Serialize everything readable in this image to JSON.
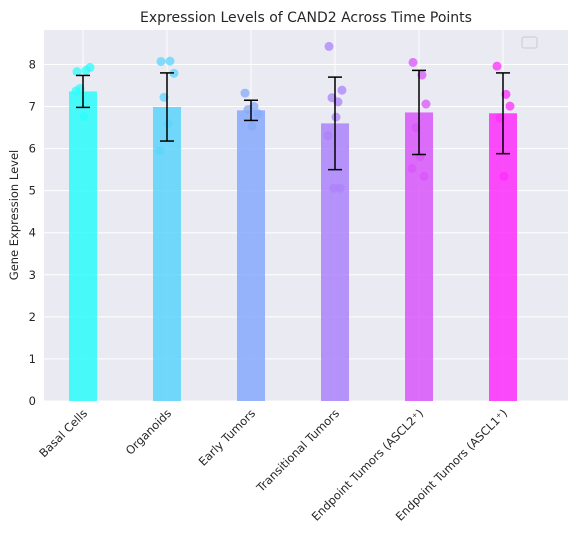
{
  "chart_data": {
    "type": "bar",
    "title": "Expression Levels of CAND2 Across Time Points",
    "xlabel": "",
    "ylabel": "Gene Expression Level",
    "ylim": [
      0,
      8.82
    ],
    "yticks": [
      0,
      1,
      2,
      3,
      4,
      5,
      6,
      7,
      8
    ],
    "grid": true,
    "legend": "top-right (empty)",
    "categories": [
      "Basal Cells",
      "Organoids",
      "Early Tumors",
      "Transitional Tumors",
      "Endpoint Tumors (ASCL2⁺)",
      "Endpoint Tumors (ASCL1⁺)"
    ],
    "colors": [
      "#2cfcfc",
      "#5cd4fb",
      "#86a9fb",
      "#ac81fb",
      "#d856fa",
      "#fd2dfb"
    ],
    "means": [
      7.36,
      6.99,
      6.91,
      6.6,
      6.86,
      6.84
    ],
    "errors": [
      0.38,
      0.81,
      0.24,
      1.1,
      1.0,
      0.96
    ],
    "points": [
      [
        7.83,
        7.86,
        7.93,
        7.43,
        6.76,
        7.37
      ],
      [
        8.07,
        8.08,
        7.79,
        7.22,
        6.6,
        5.95
      ],
      [
        7.32,
        7.0,
        6.83,
        6.93,
        6.53
      ],
      [
        8.43,
        7.11,
        7.39,
        7.21,
        6.75,
        6.31,
        5.06,
        5.06
      ],
      [
        8.05,
        7.75,
        7.06,
        6.5,
        5.81,
        5.53,
        5.34
      ],
      [
        7.96,
        7.29,
        7.01,
        6.73,
        5.34
      ]
    ]
  }
}
